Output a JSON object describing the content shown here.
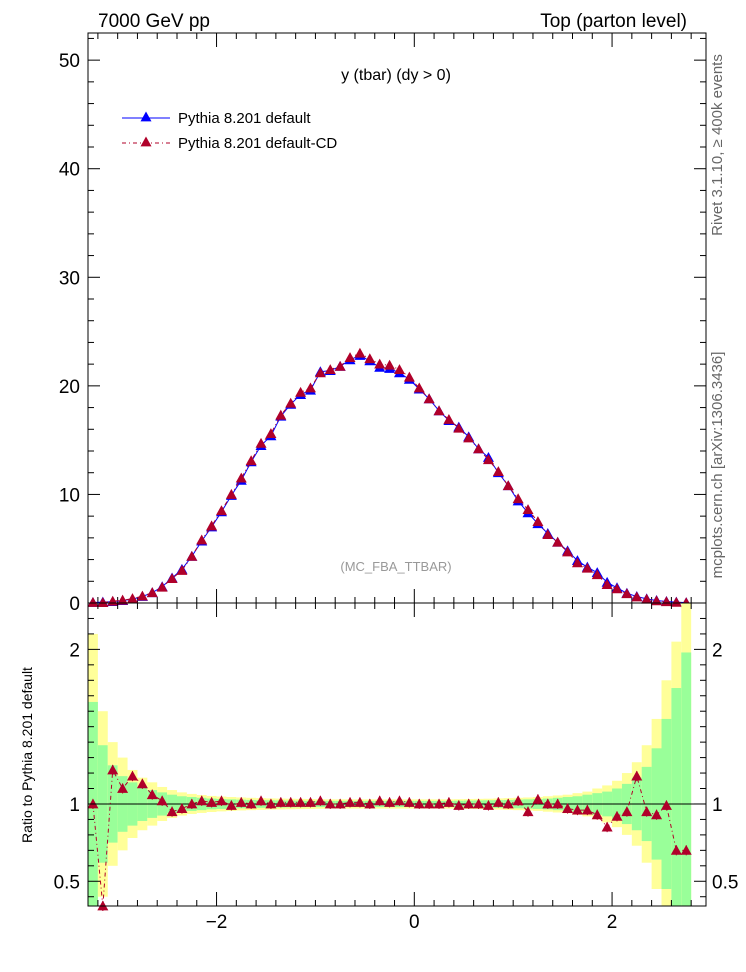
{
  "header": {
    "left": "7000 GeV pp",
    "right": "Top (parton level)"
  },
  "side_labels": {
    "rivet": "Rivet 3.1.10, ≥ 400k events",
    "mcplots": "mcplots.cern.ch [arXiv:1306.3436]"
  },
  "chart_data": [
    {
      "type": "line",
      "title": "y (tbar) (dy > 0)",
      "watermark": "(MC_FBA_TTBAR)",
      "xlabel": "",
      "ylabel": "",
      "xlim": [
        -3.3,
        2.95
      ],
      "ylim": [
        0,
        52.5
      ],
      "yticks": [
        0,
        10,
        20,
        30,
        40,
        50
      ],
      "legend_position": "top-left",
      "x": [
        -3.25,
        -3.15,
        -3.05,
        -2.95,
        -2.85,
        -2.75,
        -2.65,
        -2.55,
        -2.45,
        -2.35,
        -2.25,
        -2.15,
        -2.05,
        -1.95,
        -1.85,
        -1.75,
        -1.65,
        -1.55,
        -1.45,
        -1.35,
        -1.25,
        -1.15,
        -1.05,
        -0.95,
        -0.85,
        -0.75,
        -0.65,
        -0.55,
        -0.45,
        -0.35,
        -0.25,
        -0.15,
        -0.05,
        0.05,
        0.15,
        0.25,
        0.35,
        0.45,
        0.55,
        0.65,
        0.75,
        0.85,
        0.95,
        1.05,
        1.15,
        1.25,
        1.35,
        1.45,
        1.55,
        1.65,
        1.75,
        1.85,
        1.95,
        2.05,
        2.15,
        2.25,
        2.35,
        2.45,
        2.55,
        2.65,
        2.75
      ],
      "series": [
        {
          "name": "Pythia 8.201 default",
          "color": "#0000ff",
          "line": "solid",
          "marker": "triangle",
          "values": [
            0.05,
            0.08,
            0.13,
            0.22,
            0.36,
            0.6,
            0.95,
            1.5,
            2.3,
            3.1,
            4.3,
            5.7,
            7.0,
            8.4,
            9.9,
            11.3,
            13.0,
            14.5,
            15.4,
            17.2,
            18.3,
            19.2,
            19.6,
            21.3,
            21.4,
            21.8,
            22.4,
            22.8,
            22.3,
            21.7,
            21.6,
            21.2,
            20.6,
            19.7,
            18.8,
            17.7,
            16.8,
            16.2,
            15.3,
            14.2,
            13.4,
            12.0,
            10.8,
            9.4,
            8.3,
            7.3,
            6.4,
            5.6,
            4.8,
            3.9,
            3.3,
            2.8,
            1.9,
            1.4,
            0.9,
            0.6,
            0.38,
            0.23,
            0.14,
            0.08,
            0.04
          ]
        },
        {
          "name": "Pythia 8.201 default-CD",
          "color": "#b0002a",
          "line": "dashdot",
          "marker": "triangle",
          "values": [
            0.05,
            0.04,
            0.16,
            0.26,
            0.4,
            0.63,
            0.95,
            1.45,
            2.25,
            3.0,
            4.3,
            5.8,
            7.1,
            8.5,
            10.0,
            11.5,
            13.1,
            14.7,
            15.6,
            17.3,
            18.4,
            19.4,
            19.8,
            21.2,
            21.5,
            21.8,
            22.6,
            23.0,
            22.5,
            22.0,
            21.9,
            21.5,
            20.8,
            19.8,
            18.8,
            17.7,
            16.9,
            16.1,
            15.2,
            14.2,
            13.2,
            12.1,
            10.8,
            9.6,
            8.6,
            7.5,
            6.3,
            5.6,
            4.7,
            3.7,
            3.2,
            2.6,
            1.7,
            1.3,
            0.85,
            0.55,
            0.35,
            0.2,
            0.12,
            0.06,
            0.02
          ]
        }
      ]
    },
    {
      "type": "line",
      "title": "",
      "xlabel": "",
      "ylabel": "Ratio to Pythia 8.201 default",
      "xlim": [
        -3.3,
        2.95
      ],
      "ylim": [
        0.34,
        2.3
      ],
      "yticks": [
        0.5,
        1,
        2
      ],
      "xticks": [
        -2,
        0,
        2
      ],
      "x": [
        -3.25,
        -3.15,
        -3.05,
        -2.95,
        -2.85,
        -2.75,
        -2.65,
        -2.55,
        -2.45,
        -2.35,
        -2.25,
        -2.15,
        -2.05,
        -1.95,
        -1.85,
        -1.75,
        -1.65,
        -1.55,
        -1.45,
        -1.35,
        -1.25,
        -1.15,
        -1.05,
        -0.95,
        -0.85,
        -0.75,
        -0.65,
        -0.55,
        -0.45,
        -0.35,
        -0.25,
        -0.15,
        -0.05,
        0.05,
        0.15,
        0.25,
        0.35,
        0.45,
        0.55,
        0.65,
        0.75,
        0.85,
        0.95,
        1.05,
        1.15,
        1.25,
        1.35,
        1.45,
        1.55,
        1.65,
        1.75,
        1.85,
        1.95,
        2.05,
        2.15,
        2.25,
        2.35,
        2.45,
        2.55,
        2.65,
        2.75
      ],
      "band_green": [
        0.66,
        0.38,
        0.25,
        0.18,
        0.14,
        0.11,
        0.09,
        0.075,
        0.06,
        0.05,
        0.045,
        0.04,
        0.035,
        0.032,
        0.03,
        0.028,
        0.026,
        0.025,
        0.024,
        0.023,
        0.022,
        0.021,
        0.02,
        0.02,
        0.02,
        0.02,
        0.02,
        0.02,
        0.02,
        0.02,
        0.02,
        0.02,
        0.02,
        0.02,
        0.02,
        0.02,
        0.02,
        0.021,
        0.022,
        0.023,
        0.024,
        0.025,
        0.026,
        0.028,
        0.03,
        0.032,
        0.035,
        0.04,
        0.045,
        0.05,
        0.06,
        0.07,
        0.08,
        0.1,
        0.13,
        0.17,
        0.24,
        0.36,
        0.55,
        0.75,
        0.98
      ],
      "band_yellow": [
        1.1,
        0.6,
        0.4,
        0.3,
        0.22,
        0.17,
        0.14,
        0.11,
        0.09,
        0.075,
        0.065,
        0.058,
        0.052,
        0.048,
        0.045,
        0.042,
        0.04,
        0.038,
        0.036,
        0.035,
        0.034,
        0.033,
        0.032,
        0.031,
        0.03,
        0.03,
        0.03,
        0.03,
        0.03,
        0.03,
        0.03,
        0.03,
        0.03,
        0.03,
        0.03,
        0.03,
        0.03,
        0.031,
        0.032,
        0.033,
        0.034,
        0.036,
        0.038,
        0.04,
        0.042,
        0.045,
        0.05,
        0.055,
        0.06,
        0.07,
        0.08,
        0.1,
        0.12,
        0.15,
        0.2,
        0.27,
        0.38,
        0.55,
        0.8,
        1.05,
        1.3
      ],
      "reference": 1,
      "series": [
        {
          "name": "Pythia 8.201 default-CD",
          "color": "#b0002a",
          "line": "dashdot",
          "marker": "triangle",
          "values": [
            1.0,
            0.34,
            1.22,
            1.1,
            1.18,
            1.13,
            1.06,
            1.02,
            0.95,
            0.97,
            1.0,
            1.02,
            1.01,
            1.02,
            0.99,
            1.01,
            1.0,
            1.02,
            1.0,
            1.01,
            1.01,
            1.01,
            1.01,
            1.02,
            1.0,
            1.0,
            1.01,
            1.01,
            1.0,
            1.02,
            1.01,
            1.02,
            1.01,
            1.0,
            1.0,
            1.0,
            1.01,
            0.99,
            1.0,
            1.0,
            0.99,
            1.01,
            1.0,
            1.02,
            0.95,
            1.03,
            1.0,
            1.0,
            0.97,
            0.96,
            0.96,
            0.93,
            0.85,
            0.92,
            0.95,
            1.18,
            0.95,
            0.93,
            0.99,
            0.7,
            0.7
          ]
        }
      ]
    }
  ]
}
